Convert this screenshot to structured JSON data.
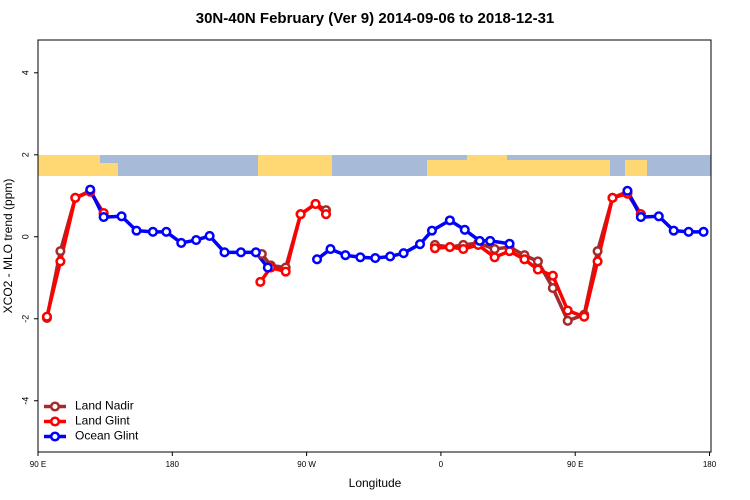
{
  "chart_data": {
    "type": "line",
    "title": "30N-40N February (Ver 9)   2014-09-06 to 2018-12-31",
    "x_label": "Longitude",
    "y_label": "XCO2 - MLO trend (ppm)",
    "xlim": [
      90,
      541
    ],
    "ylim": [
      -5.25,
      4.8
    ],
    "xticks": [
      {
        "value": 90,
        "label": "90 E"
      },
      {
        "value": 180,
        "label": "180"
      },
      {
        "value": 270,
        "label": "90 W"
      },
      {
        "value": 360,
        "label": "0"
      },
      {
        "value": 450,
        "label": "90 E"
      },
      {
        "value": 540,
        "label": "180"
      }
    ],
    "yticks": [
      4,
      2,
      0,
      -2,
      -4
    ],
    "legend": "bottomleft",
    "series": [
      {
        "name": "Land Nadir",
        "color": "#a52a2a",
        "x": [
          96,
          105,
          115,
          125,
          134,
          null,
          240,
          246,
          256,
          266,
          276,
          283,
          null,
          356,
          366,
          375,
          385,
          396,
          406,
          416,
          425,
          435,
          445,
          456,
          465,
          475,
          485,
          494
        ],
        "values": [
          -1.98,
          -0.35,
          0.95,
          1.12,
          0.55,
          null,
          -0.42,
          -0.7,
          -0.75,
          0.55,
          0.8,
          0.65,
          null,
          -0.2,
          -0.25,
          -0.2,
          -0.15,
          -0.3,
          -0.25,
          -0.45,
          -0.6,
          -1.25,
          -2.05,
          -1.9,
          -0.35,
          0.95,
          1.1,
          0.55
        ]
      },
      {
        "name": "Land Glint",
        "color": "#ff0000",
        "x": [
          96,
          105,
          115,
          125,
          134,
          null,
          239,
          246,
          256,
          266,
          276,
          283,
          null,
          356,
          366,
          375,
          385,
          396,
          406,
          416,
          425,
          435,
          445,
          456,
          465,
          475,
          485,
          494
        ],
        "values": [
          -1.95,
          -0.6,
          0.95,
          1.1,
          0.58,
          null,
          -1.1,
          -0.75,
          -0.85,
          0.55,
          0.8,
          0.55,
          null,
          -0.28,
          -0.25,
          -0.3,
          -0.2,
          -0.5,
          -0.35,
          -0.55,
          -0.8,
          -0.95,
          -1.8,
          -1.95,
          -0.6,
          0.95,
          1.05,
          0.55
        ]
      },
      {
        "name": "Ocean Glint",
        "color": "#0000ff",
        "x": [
          125,
          134,
          146,
          156,
          167,
          176,
          186,
          196,
          205,
          215,
          226,
          236,
          244,
          null,
          277,
          286,
          296,
          306,
          316,
          326,
          335,
          346,
          354,
          366,
          376,
          386,
          393,
          406,
          null,
          485,
          494,
          506,
          516,
          526,
          536
        ],
        "values": [
          1.15,
          0.48,
          0.5,
          0.15,
          0.12,
          0.12,
          -0.15,
          -0.08,
          0.02,
          -0.38,
          -0.38,
          -0.38,
          -0.75,
          null,
          -0.55,
          -0.3,
          -0.45,
          -0.5,
          -0.52,
          -0.48,
          -0.4,
          -0.18,
          0.15,
          0.4,
          0.17,
          -0.1,
          -0.1,
          -0.17,
          null,
          1.12,
          0.48,
          0.5,
          0.15,
          0.12,
          0.12
        ]
      }
    ]
  }
}
